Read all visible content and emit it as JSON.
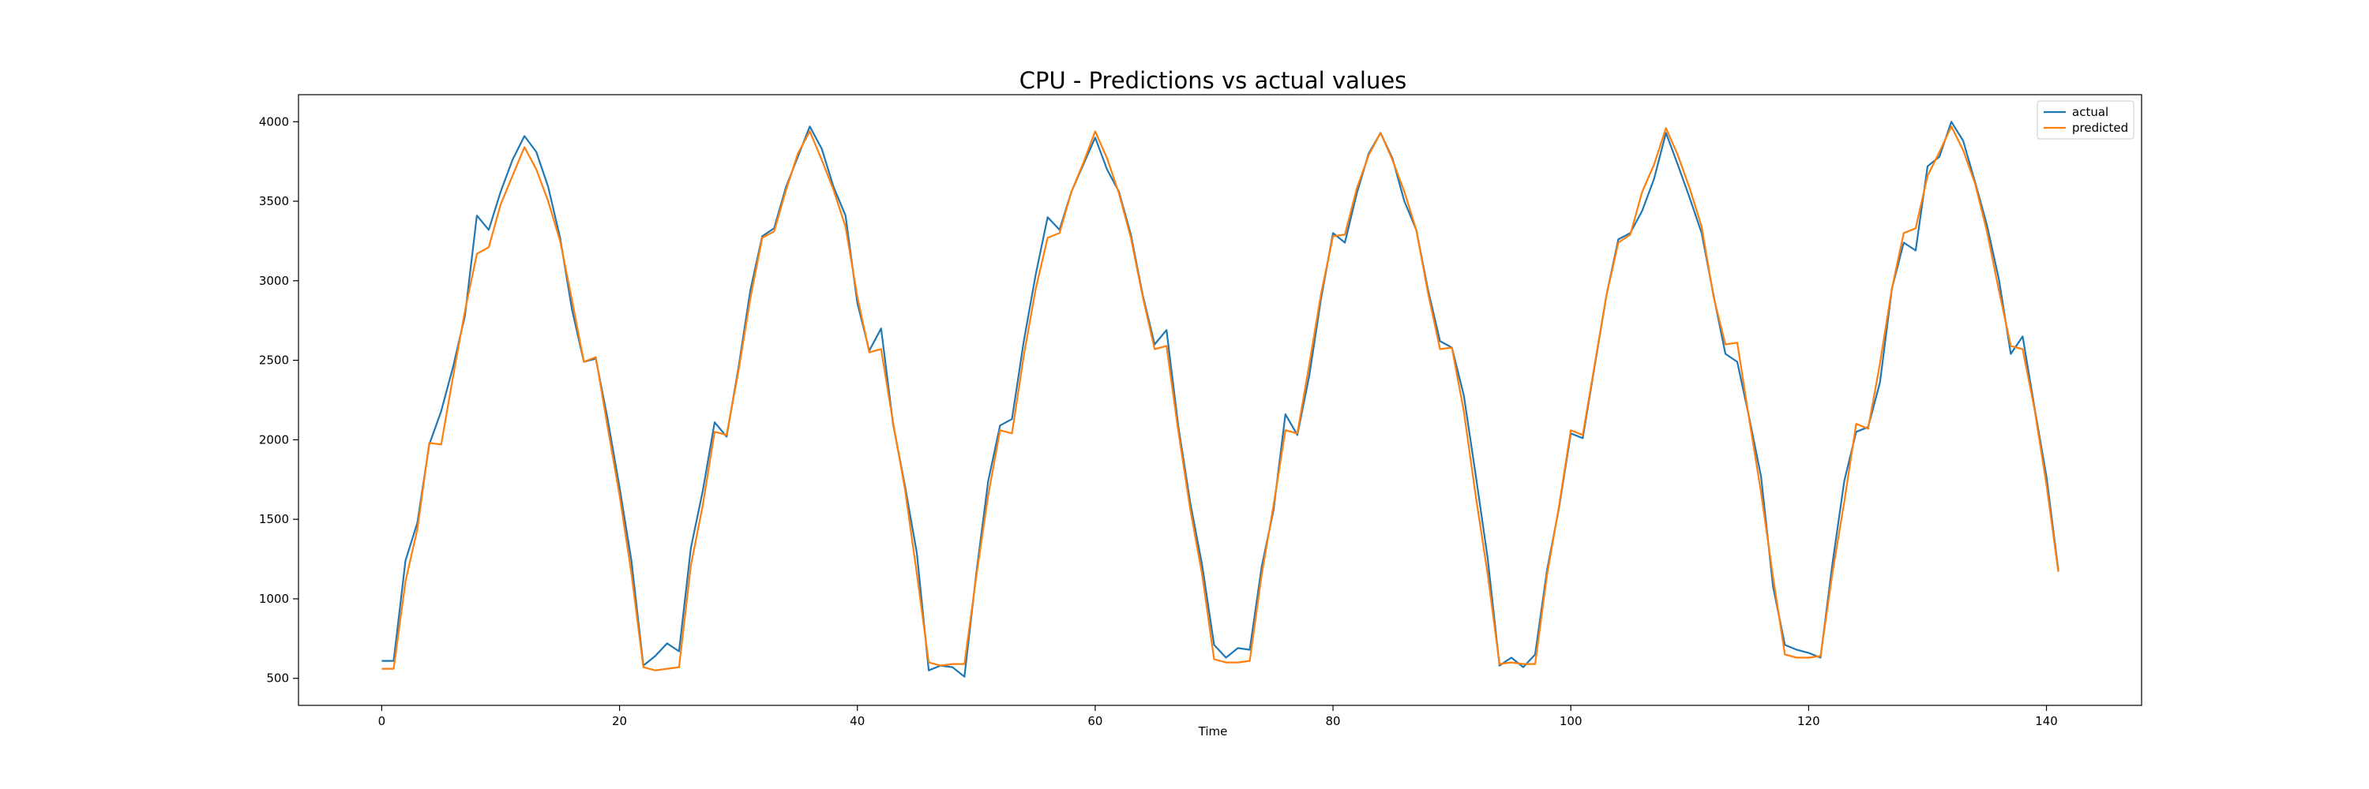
{
  "chart_data": {
    "type": "line",
    "title": "CPU - Predictions vs actual values",
    "xlabel": "Time",
    "ylabel": "",
    "xlim": [
      -7,
      148
    ],
    "ylim": [
      330,
      4170
    ],
    "xticks": [
      0,
      20,
      40,
      60,
      80,
      100,
      120,
      140
    ],
    "yticks": [
      500,
      1000,
      1500,
      2000,
      2500,
      3000,
      3500,
      4000
    ],
    "grid": false,
    "legend": "top-right",
    "series": [
      {
        "name": "actual",
        "color": "#1f77b4",
        "values": [
          610,
          610,
          1240,
          1480,
          1970,
          2180,
          2460,
          2780,
          3410,
          3320,
          3560,
          3760,
          3910,
          3810,
          3590,
          3270,
          2820,
          2490,
          2510,
          2130,
          1700,
          1240,
          580,
          640,
          720,
          670,
          1320,
          1680,
          2110,
          2020,
          2450,
          2940,
          3280,
          3330,
          3590,
          3780,
          3970,
          3830,
          3590,
          3410,
          2860,
          2560,
          2700,
          2100,
          1710,
          1290,
          550,
          580,
          570,
          510,
          1160,
          1740,
          2090,
          2130,
          2620,
          3040,
          3400,
          3320,
          3560,
          3730,
          3900,
          3700,
          3560,
          3290,
          2910,
          2600,
          2690,
          2080,
          1600,
          1210,
          710,
          630,
          690,
          680,
          1200,
          1560,
          2160,
          2030,
          2400,
          2890,
          3300,
          3240,
          3550,
          3800,
          3930,
          3770,
          3500,
          3320,
          2940,
          2620,
          2580,
          2280,
          1780,
          1260,
          580,
          630,
          570,
          650,
          1180,
          1570,
          2040,
          2010,
          2460,
          2910,
          3260,
          3300,
          3440,
          3640,
          3930,
          3730,
          3520,
          3300,
          2910,
          2540,
          2490,
          2140,
          1770,
          1080,
          710,
          680,
          660,
          630,
          1220,
          1740,
          2050,
          2080,
          2360,
          2950,
          3240,
          3190,
          3720,
          3780,
          4000,
          3880,
          3620,
          3350,
          3010,
          2540,
          2650,
          2200,
          1770,
          1180
        ],
        "x_start": 0
      },
      {
        "name": "predicted",
        "color": "#ff7f0e",
        "values": [
          560,
          560,
          1110,
          1440,
          1980,
          1970,
          2400,
          2810,
          3170,
          3210,
          3480,
          3660,
          3840,
          3700,
          3500,
          3250,
          2880,
          2490,
          2520,
          2080,
          1650,
          1160,
          570,
          550,
          560,
          570,
          1210,
          1590,
          2050,
          2030,
          2430,
          2890,
          3270,
          3310,
          3570,
          3800,
          3940,
          3760,
          3570,
          3340,
          2900,
          2550,
          2570,
          2110,
          1690,
          1160,
          600,
          580,
          590,
          590,
          1140,
          1650,
          2060,
          2040,
          2530,
          2950,
          3270,
          3300,
          3560,
          3740,
          3940,
          3770,
          3550,
          3270,
          2900,
          2570,
          2590,
          2050,
          1560,
          1150,
          620,
          600,
          600,
          610,
          1150,
          1590,
          2060,
          2040,
          2470,
          2920,
          3280,
          3290,
          3580,
          3790,
          3930,
          3760,
          3560,
          3320,
          2920,
          2570,
          2580,
          2180,
          1650,
          1160,
          590,
          600,
          590,
          590,
          1150,
          1580,
          2060,
          2030,
          2470,
          2910,
          3240,
          3290,
          3560,
          3730,
          3960,
          3790,
          3580,
          3340,
          2900,
          2600,
          2610,
          2130,
          1670,
          1140,
          650,
          630,
          630,
          640,
          1160,
          1610,
          2100,
          2070,
          2480,
          2950,
          3300,
          3330,
          3660,
          3810,
          3970,
          3820,
          3610,
          3310,
          2940,
          2590,
          2570,
          2190,
          1720,
          1170
        ],
        "x_start": 0
      }
    ]
  }
}
